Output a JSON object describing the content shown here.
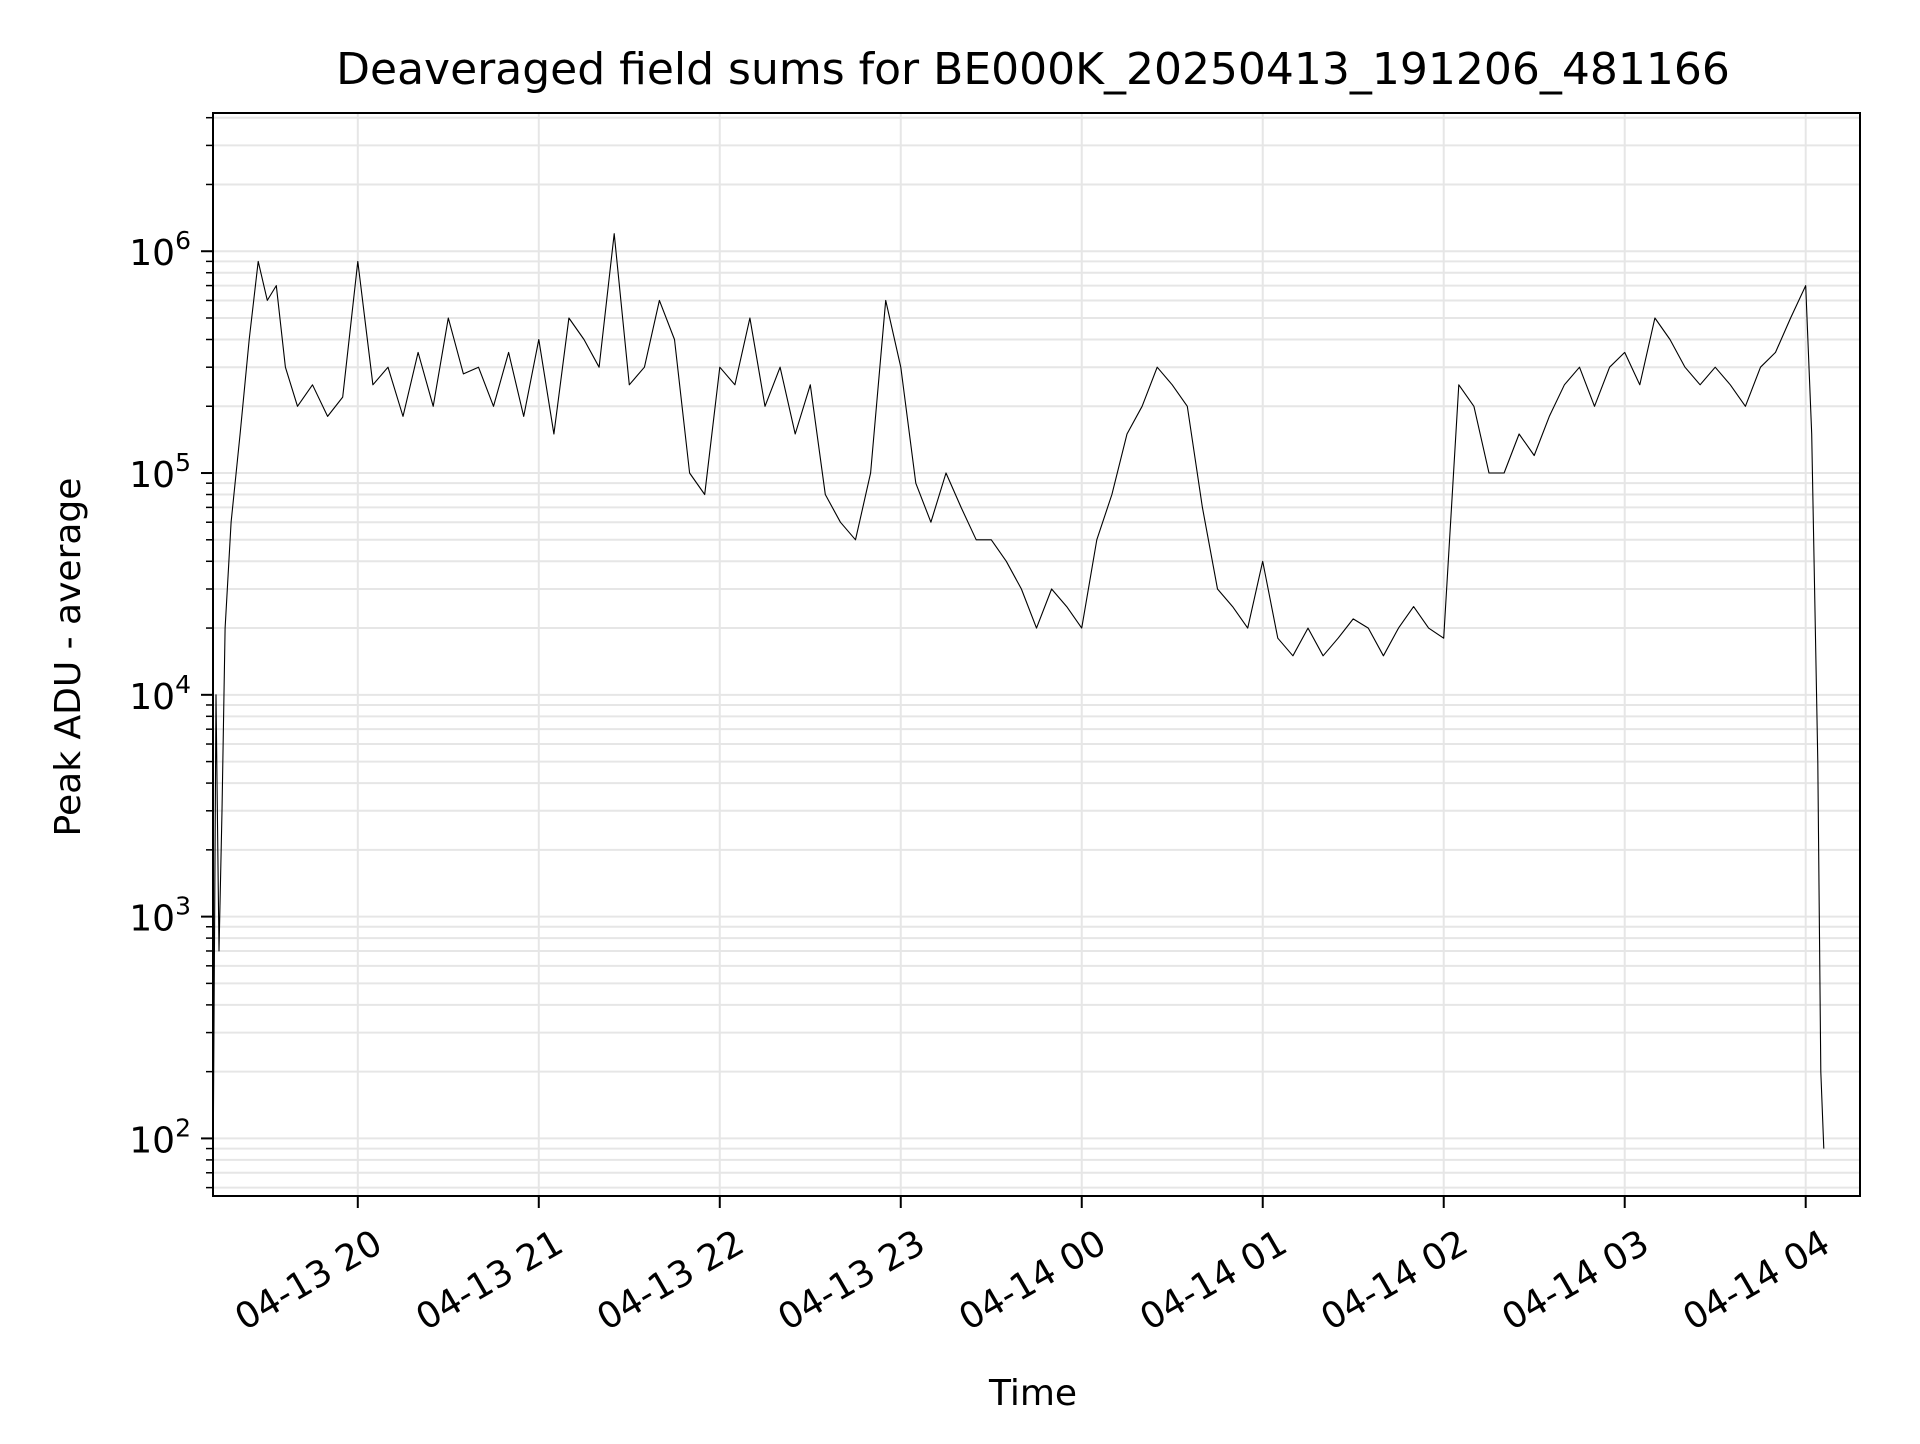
{
  "chart_data": {
    "type": "line",
    "title": "Deaveraged field sums for BE000K_20250413_191206_481166",
    "xlabel": "Time",
    "ylabel": "Peak ADU - average",
    "yscale": "log",
    "ylim": [
      55,
      4200000
    ],
    "xlim": [
      "2025-04-13 19:12",
      "2025-04-14 04:18"
    ],
    "grid": true,
    "grid_minor": true,
    "legend": "none",
    "line_color": "#000000",
    "x_ticks": [
      {
        "value": "2025-04-13 20:00",
        "label": "04-13 20"
      },
      {
        "value": "2025-04-13 21:00",
        "label": "04-13 21"
      },
      {
        "value": "2025-04-13 22:00",
        "label": "04-13 22"
      },
      {
        "value": "2025-04-13 23:00",
        "label": "04-13 23"
      },
      {
        "value": "2025-04-14 00:00",
        "label": "04-14 00"
      },
      {
        "value": "2025-04-14 01:00",
        "label": "04-14 01"
      },
      {
        "value": "2025-04-14 02:00",
        "label": "04-14 02"
      },
      {
        "value": "2025-04-14 03:00",
        "label": "04-14 03"
      },
      {
        "value": "2025-04-14 04:00",
        "label": "04-14 04"
      }
    ],
    "y_ticks": [
      {
        "value": 100,
        "base": "10",
        "exp": "2"
      },
      {
        "value": 1000,
        "base": "10",
        "exp": "3"
      },
      {
        "value": 10000,
        "base": "10",
        "exp": "4"
      },
      {
        "value": 100000,
        "base": "10",
        "exp": "5"
      },
      {
        "value": 1000000,
        "base": "10",
        "exp": "6"
      }
    ],
    "series": [
      {
        "x": [
          "2025-04-13 19:12",
          "2025-04-13 19:13",
          "2025-04-13 19:14",
          "2025-04-13 19:15",
          "2025-04-13 19:16",
          "2025-04-13 19:18",
          "2025-04-13 19:21",
          "2025-04-13 19:24",
          "2025-04-13 19:27",
          "2025-04-13 19:30",
          "2025-04-13 19:33",
          "2025-04-13 19:36",
          "2025-04-13 19:40",
          "2025-04-13 19:45",
          "2025-04-13 19:50",
          "2025-04-13 19:55",
          "2025-04-13 20:00",
          "2025-04-13 20:05",
          "2025-04-13 20:10",
          "2025-04-13 20:15",
          "2025-04-13 20:20",
          "2025-04-13 20:25",
          "2025-04-13 20:30",
          "2025-04-13 20:35",
          "2025-04-13 20:40",
          "2025-04-13 20:45",
          "2025-04-13 20:50",
          "2025-04-13 20:55",
          "2025-04-13 21:00",
          "2025-04-13 21:05",
          "2025-04-13 21:10",
          "2025-04-13 21:15",
          "2025-04-13 21:20",
          "2025-04-13 21:25",
          "2025-04-13 21:30",
          "2025-04-13 21:35",
          "2025-04-13 21:40",
          "2025-04-13 21:45",
          "2025-04-13 21:50",
          "2025-04-13 21:55",
          "2025-04-13 22:00",
          "2025-04-13 22:05",
          "2025-04-13 22:10",
          "2025-04-13 22:15",
          "2025-04-13 22:20",
          "2025-04-13 22:25",
          "2025-04-13 22:30",
          "2025-04-13 22:35",
          "2025-04-13 22:40",
          "2025-04-13 22:45",
          "2025-04-13 22:50",
          "2025-04-13 22:55",
          "2025-04-13 23:00",
          "2025-04-13 23:05",
          "2025-04-13 23:10",
          "2025-04-13 23:15",
          "2025-04-13 23:20",
          "2025-04-13 23:25",
          "2025-04-13 23:30",
          "2025-04-13 23:35",
          "2025-04-13 23:40",
          "2025-04-13 23:45",
          "2025-04-13 23:50",
          "2025-04-13 23:55",
          "2025-04-14 00:00",
          "2025-04-14 00:05",
          "2025-04-14 00:10",
          "2025-04-14 00:15",
          "2025-04-14 00:20",
          "2025-04-14 00:25",
          "2025-04-14 00:30",
          "2025-04-14 00:35",
          "2025-04-14 00:40",
          "2025-04-14 00:45",
          "2025-04-14 00:50",
          "2025-04-14 00:55",
          "2025-04-14 01:00",
          "2025-04-14 01:05",
          "2025-04-14 01:10",
          "2025-04-14 01:15",
          "2025-04-14 01:20",
          "2025-04-14 01:25",
          "2025-04-14 01:30",
          "2025-04-14 01:35",
          "2025-04-14 01:40",
          "2025-04-14 01:45",
          "2025-04-14 01:50",
          "2025-04-14 01:55",
          "2025-04-14 02:00",
          "2025-04-14 02:05",
          "2025-04-14 02:10",
          "2025-04-14 02:15",
          "2025-04-14 02:20",
          "2025-04-14 02:25",
          "2025-04-14 02:30",
          "2025-04-14 02:35",
          "2025-04-14 02:40",
          "2025-04-14 02:45",
          "2025-04-14 02:50",
          "2025-04-14 02:55",
          "2025-04-14 03:00",
          "2025-04-14 03:05",
          "2025-04-14 03:10",
          "2025-04-14 03:15",
          "2025-04-14 03:20",
          "2025-04-14 03:25",
          "2025-04-14 03:30",
          "2025-04-14 03:35",
          "2025-04-14 03:40",
          "2025-04-14 03:45",
          "2025-04-14 03:50",
          "2025-04-14 03:55",
          "2025-04-14 04:00",
          "2025-04-14 04:02",
          "2025-04-14 04:04",
          "2025-04-14 04:05",
          "2025-04-14 04:06"
        ],
        "values": [
          60,
          10000,
          700,
          3000,
          20000,
          60000,
          150000,
          400000,
          900000,
          600000,
          700000,
          300000,
          200000,
          250000,
          180000,
          220000,
          900000,
          250000,
          300000,
          180000,
          350000,
          200000,
          500000,
          280000,
          300000,
          200000,
          350000,
          180000,
          400000,
          150000,
          500000,
          400000,
          300000,
          1200000,
          250000,
          300000,
          600000,
          400000,
          100000,
          80000,
          300000,
          250000,
          500000,
          200000,
          300000,
          150000,
          250000,
          80000,
          60000,
          50000,
          100000,
          600000,
          300000,
          90000,
          60000,
          100000,
          70000,
          50000,
          50000,
          40000,
          30000,
          20000,
          30000,
          25000,
          20000,
          50000,
          80000,
          150000,
          200000,
          300000,
          250000,
          200000,
          70000,
          30000,
          25000,
          20000,
          40000,
          18000,
          15000,
          20000,
          15000,
          18000,
          22000,
          20000,
          15000,
          20000,
          25000,
          20000,
          18000,
          250000,
          200000,
          100000,
          100000,
          150000,
          120000,
          180000,
          250000,
          300000,
          200000,
          300000,
          350000,
          250000,
          500000,
          400000,
          300000,
          250000,
          300000,
          250000,
          200000,
          300000,
          350000,
          500000,
          700000,
          150000,
          5000,
          200,
          90
        ]
      }
    ]
  }
}
